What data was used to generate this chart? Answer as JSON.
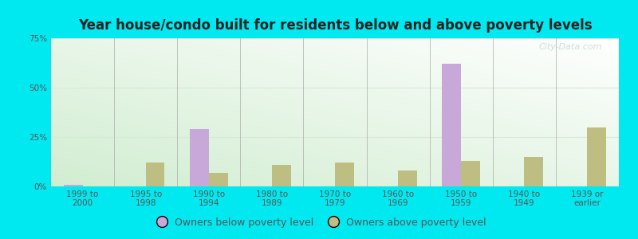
{
  "title": "Year house/condo built for residents below and above poverty levels",
  "categories": [
    "1999 to\n2000",
    "1995 to\n1998",
    "1990 to\n1994",
    "1980 to\n1989",
    "1970 to\n1979",
    "1960 to\n1969",
    "1950 to\n1959",
    "1940 to\n1949",
    "1939 or\nearlier"
  ],
  "below_poverty": [
    1.0,
    0.0,
    29.0,
    0.0,
    0.0,
    0.0,
    62.0,
    0.0,
    0.0
  ],
  "above_poverty": [
    0.0,
    12.0,
    7.0,
    11.0,
    12.0,
    8.0,
    13.0,
    15.0,
    30.0
  ],
  "below_color": "#c8a8d8",
  "above_color": "#bebe82",
  "outer_bg": "#00e8f0",
  "title_color": "#222222",
  "tick_color": "#555555",
  "grid_color": "#e0e8e0",
  "ylim": [
    0,
    75
  ],
  "yticks": [
    0,
    25,
    50,
    75
  ],
  "bar_width": 0.3,
  "title_fontsize": 12,
  "legend_fontsize": 9,
  "tick_fontsize": 7.5,
  "watermark_text": "City-Data.com"
}
